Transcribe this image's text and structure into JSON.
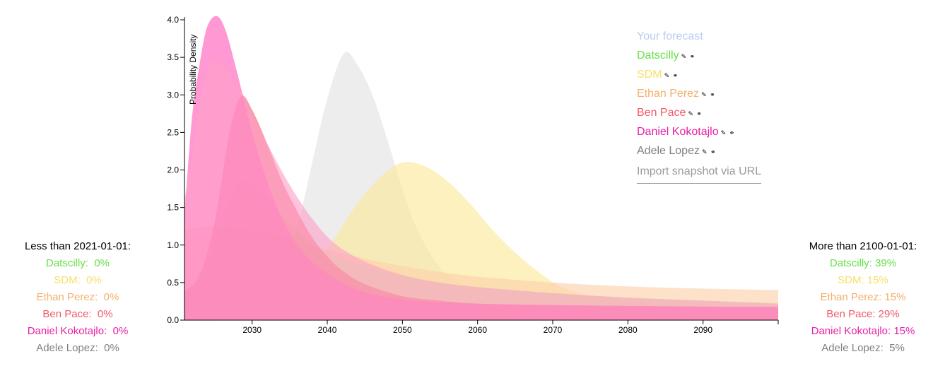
{
  "chart_data": {
    "type": "area",
    "title": "",
    "xlabel": "",
    "ylabel": "Probability Density",
    "xlim": [
      2021,
      2100
    ],
    "ylim": [
      0,
      4.1
    ],
    "xticks": [
      2030,
      2040,
      2050,
      2060,
      2070,
      2080,
      2090
    ],
    "yticks": [
      "0.0",
      "0.5",
      "1.0",
      "1.5",
      "2.0",
      "2.5",
      "3.0",
      "3.5",
      "4.0"
    ],
    "grid": false,
    "legend_position": "top-right",
    "series": [
      {
        "name": "Adele Lopez",
        "color": "#e2e2e2",
        "x": [
          2021,
          2026,
          2030,
          2033,
          2036,
          2038,
          2040,
          2042.2,
          2044,
          2046,
          2048,
          2050,
          2052,
          2055,
          2058,
          2062,
          2066,
          2072,
          2080,
          2090,
          2100
        ],
        "y": [
          0.0,
          0.0,
          0.08,
          0.38,
          1.25,
          2.1,
          2.95,
          3.55,
          3.4,
          3.0,
          2.4,
          1.75,
          1.2,
          0.7,
          0.48,
          0.35,
          0.3,
          0.26,
          0.23,
          0.21,
          0.19
        ]
      },
      {
        "name": "SDM",
        "color": "#fce99a",
        "x": [
          2021,
          2028,
          2032,
          2035,
          2038,
          2041,
          2044,
          2047,
          2050,
          2053,
          2056,
          2059,
          2062,
          2065,
          2068,
          2071,
          2075,
          2080,
          2090,
          2100
        ],
        "y": [
          0.0,
          0.04,
          0.15,
          0.32,
          0.65,
          1.1,
          1.55,
          1.9,
          2.1,
          2.05,
          1.85,
          1.55,
          1.2,
          0.9,
          0.65,
          0.45,
          0.32,
          0.26,
          0.2,
          0.17
        ]
      },
      {
        "name": "Ethan Perez",
        "color": "#fbd0a8",
        "x": [
          2021,
          2025,
          2030,
          2035,
          2040,
          2045,
          2050,
          2055,
          2060,
          2070,
          2080,
          2090,
          2100
        ],
        "y": [
          1.2,
          1.25,
          1.2,
          1.08,
          0.94,
          0.82,
          0.72,
          0.64,
          0.58,
          0.5,
          0.45,
          0.42,
          0.4
        ]
      },
      {
        "name": "Datscilly",
        "color": "#d4eaa0",
        "x": [
          2021,
          2025,
          2028,
          2031,
          2034,
          2037,
          2040,
          2045,
          2050,
          2055,
          2060,
          2070,
          2080,
          2090,
          2100
        ],
        "y": [
          0.35,
          1.0,
          1.8,
          1.75,
          1.4,
          1.1,
          0.9,
          0.72,
          0.6,
          0.5,
          0.44,
          0.36,
          0.3,
          0.26,
          0.23
        ]
      },
      {
        "name": "Ben Pace",
        "color": "#f4606f",
        "x": [
          2021,
          2023,
          2025,
          2027,
          2028.5,
          2030,
          2032,
          2034,
          2036,
          2038,
          2040,
          2042,
          2045,
          2050,
          2055,
          2060,
          2070,
          2080,
          2090,
          2100
        ],
        "y": [
          0.38,
          0.6,
          1.3,
          2.5,
          2.98,
          2.8,
          2.35,
          1.85,
          1.45,
          1.1,
          0.85,
          0.66,
          0.48,
          0.32,
          0.26,
          0.22,
          0.2,
          0.19,
          0.18,
          0.17
        ]
      },
      {
        "name": "Daniel Kokotajlo",
        "color": "#ff58b8",
        "x": [
          2021,
          2022,
          2023,
          2024,
          2025.3,
          2026.5,
          2028,
          2030,
          2032,
          2034,
          2036,
          2038,
          2040,
          2043,
          2046,
          2050,
          2055,
          2060,
          2070,
          2080,
          2090,
          2100
        ],
        "y": [
          1.4,
          2.7,
          3.4,
          3.9,
          4.05,
          3.85,
          3.3,
          2.5,
          1.85,
          1.35,
          1.0,
          0.78,
          0.62,
          0.45,
          0.35,
          0.28,
          0.24,
          0.22,
          0.2,
          0.19,
          0.18,
          0.18
        ]
      },
      {
        "name": "Daniel Kokotajlo",
        "color": "#ff9fc8",
        "x": [
          2021,
          2022,
          2023,
          2024,
          2024.8,
          2026,
          2028,
          2030,
          2032,
          2035,
          2038,
          2041,
          2045,
          2050,
          2055,
          2060,
          2070,
          2080,
          2090,
          2100
        ],
        "y": [
          1.6,
          2.2,
          2.9,
          3.3,
          3.45,
          3.4,
          3.15,
          2.75,
          2.35,
          1.8,
          1.35,
          1.02,
          0.78,
          0.6,
          0.5,
          0.44,
          0.36,
          0.3,
          0.26,
          0.22
        ]
      }
    ]
  },
  "legend": {
    "your_forecast": "Your forecast",
    "your_forecast_color": "#b8ccf4",
    "tools": "✎ ⚭",
    "items": [
      {
        "name": "Datscilly",
        "color": "#66e04a"
      },
      {
        "name": "SDM",
        "color": "#f7df6a"
      },
      {
        "name": "Ethan Perez",
        "color": "#f4b06c"
      },
      {
        "name": "Ben Pace",
        "color": "#f05a68"
      },
      {
        "name": "Daniel Kokotajlo",
        "color": "#e81fa5"
      },
      {
        "name": "Adele Lopez",
        "color": "#808080"
      }
    ],
    "import_link": "Import snapshot via URL"
  },
  "panels": {
    "left": {
      "title": "Less than 2021-01-01:",
      "rows": [
        {
          "text": "Datscilly:  0%",
          "color": "#66e04a"
        },
        {
          "text": "SDM:  0%",
          "color": "#f7df6a"
        },
        {
          "text": "Ethan Perez:  0%",
          "color": "#f4b06c"
        },
        {
          "text": "Ben Pace:  0%",
          "color": "#f05a68"
        },
        {
          "text": "Daniel Kokotajlo:  0%",
          "color": "#e81fa5"
        },
        {
          "text": "Adele Lopez:  0%",
          "color": "#808080"
        }
      ]
    },
    "right": {
      "title": "More than 2100-01-01:",
      "rows": [
        {
          "text": "Datscilly: 39%",
          "color": "#66e04a"
        },
        {
          "text": "SDM: 15%",
          "color": "#f7df6a"
        },
        {
          "text": "Ethan Perez: 15%",
          "color": "#f4b06c"
        },
        {
          "text": "Ben Pace: 29%",
          "color": "#f05a68"
        },
        {
          "text": "Daniel Kokotajlo: 15%",
          "color": "#e81fa5"
        },
        {
          "text": "Adele Lopez:  5%",
          "color": "#808080"
        }
      ]
    }
  }
}
